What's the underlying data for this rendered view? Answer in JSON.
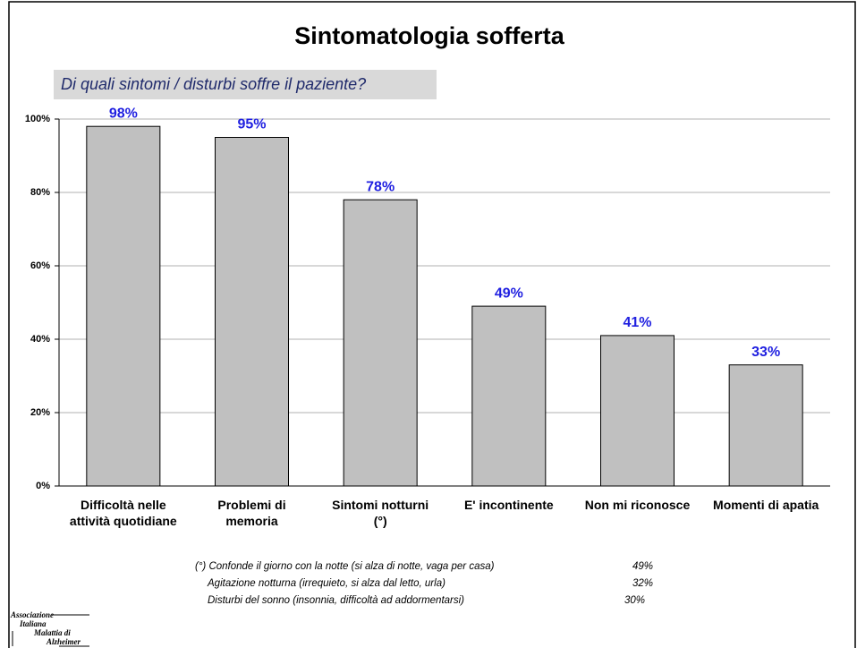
{
  "chart_data": {
    "type": "bar",
    "title": "Sintomatologia sofferta",
    "subtitle": "Di quali sintomi / disturbi soffre il paziente?",
    "categories": [
      "Difficoltà nelle\nattività quotidiane",
      "Problemi di\nmemoria",
      "Sintomi notturni\n(°)",
      "E' incontinente",
      "Non mi riconosce",
      "Momenti di apatia"
    ],
    "values": [
      98,
      95,
      78,
      49,
      41,
      33
    ],
    "value_labels": [
      "98%",
      "95%",
      "78%",
      "49%",
      "41%",
      "33%"
    ],
    "color": "#c0c0c0",
    "label_color": "#1f1fe0",
    "ylim": [
      0,
      100
    ],
    "yticks": [
      {
        "value": 0,
        "label": "0%"
      },
      {
        "value": 20,
        "label": "20%"
      },
      {
        "value": 40,
        "label": "40%"
      },
      {
        "value": 60,
        "label": "60%"
      },
      {
        "value": 80,
        "label": "80%"
      },
      {
        "value": 100,
        "label": "100%"
      }
    ],
    "grid": true
  },
  "notes": [
    {
      "text": "(°) Confonde il giorno con la notte (si alza di notte, vaga per casa)",
      "value": "49%"
    },
    {
      "text": "Agitazione notturna (irrequieto, si alza dal letto, urla)",
      "value": "32%"
    },
    {
      "text": "Disturbi del sonno (insonnia, difficoltà ad addormentarsi)",
      "value": "30%"
    }
  ],
  "logo": [
    "Associazione",
    "Italiana",
    "Malattia di",
    "Alzheimer"
  ]
}
